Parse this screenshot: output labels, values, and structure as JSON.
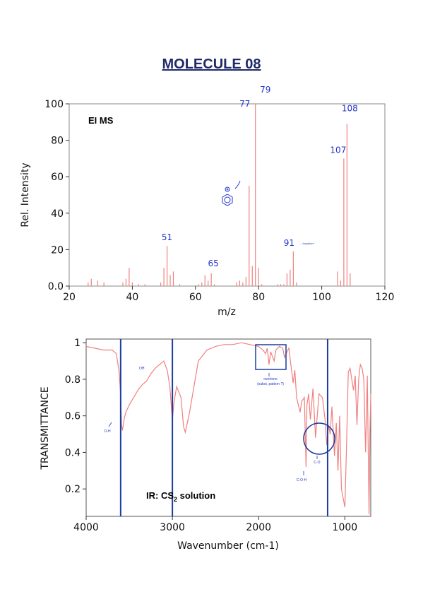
{
  "page_title": "MOLECULE 08",
  "chart_data": [
    {
      "type": "bar",
      "title": "EI MS",
      "xlabel": "m/z",
      "ylabel": "Rel. Intensity",
      "xlim": [
        20,
        120
      ],
      "ylim": [
        0,
        100
      ],
      "xticks": [
        "20",
        "40",
        "60",
        "80",
        "100",
        "120"
      ],
      "yticks": [
        "0.0",
        "20",
        "40",
        "60",
        "80",
        "100"
      ],
      "grid": false,
      "color": "#f08080",
      "peaks": [
        {
          "x": 26,
          "y": 2
        },
        {
          "x": 27,
          "y": 4
        },
        {
          "x": 29,
          "y": 3
        },
        {
          "x": 31,
          "y": 2
        },
        {
          "x": 37,
          "y": 2
        },
        {
          "x": 38,
          "y": 4
        },
        {
          "x": 39,
          "y": 10
        },
        {
          "x": 40,
          "y": 2
        },
        {
          "x": 42,
          "y": 1
        },
        {
          "x": 44,
          "y": 1
        },
        {
          "x": 49,
          "y": 2
        },
        {
          "x": 50,
          "y": 10
        },
        {
          "x": 51,
          "y": 22
        },
        {
          "x": 52,
          "y": 6
        },
        {
          "x": 53,
          "y": 8
        },
        {
          "x": 55,
          "y": 1
        },
        {
          "x": 61,
          "y": 1
        },
        {
          "x": 62,
          "y": 2
        },
        {
          "x": 63,
          "y": 6
        },
        {
          "x": 64,
          "y": 3
        },
        {
          "x": 65,
          "y": 7
        },
        {
          "x": 66,
          "y": 1
        },
        {
          "x": 73,
          "y": 2
        },
        {
          "x": 74,
          "y": 3
        },
        {
          "x": 75,
          "y": 2
        },
        {
          "x": 76,
          "y": 5
        },
        {
          "x": 77,
          "y": 55
        },
        {
          "x": 78,
          "y": 11
        },
        {
          "x": 79,
          "y": 100
        },
        {
          "x": 80,
          "y": 10
        },
        {
          "x": 81,
          "y": 1
        },
        {
          "x": 86,
          "y": 1
        },
        {
          "x": 87,
          "y": 1
        },
        {
          "x": 88,
          "y": 1
        },
        {
          "x": 89,
          "y": 7
        },
        {
          "x": 90,
          "y": 9
        },
        {
          "x": 91,
          "y": 19
        },
        {
          "x": 92,
          "y": 2
        },
        {
          "x": 105,
          "y": 8
        },
        {
          "x": 106,
          "y": 3
        },
        {
          "x": 107,
          "y": 70
        },
        {
          "x": 108,
          "y": 89
        },
        {
          "x": 109,
          "y": 7
        }
      ],
      "annotations": [
        {
          "text": "51",
          "x": 51,
          "y": 22
        },
        {
          "text": "65",
          "x": 65,
          "y": 7
        },
        {
          "text": "77",
          "x": 77,
          "y": 55
        },
        {
          "text": "79",
          "x": 79,
          "y": 100
        },
        {
          "text": "91",
          "x": 91,
          "y": 19,
          "note": "→ tropylium"
        },
        {
          "text": "107",
          "x": 107,
          "y": 70
        },
        {
          "text": "108",
          "x": 108,
          "y": 89
        }
      ]
    },
    {
      "type": "line",
      "title": "IR: CS2 solution",
      "xlabel": "Wavenumber (cm-1)",
      "ylabel": "TRANSMITTANCE",
      "xlim": [
        4000,
        700
      ],
      "ylim": [
        0.05,
        1.02
      ],
      "xticks": [
        "4000",
        "3000",
        "2000",
        "1000"
      ],
      "yticks": [
        "0.2",
        "0.4",
        "0.6",
        "0.8",
        "1"
      ],
      "grid": false,
      "color": "#f08080",
      "x": [
        4000,
        3900,
        3800,
        3700,
        3650,
        3620,
        3600,
        3590,
        3580,
        3560,
        3540,
        3500,
        3450,
        3400,
        3350,
        3300,
        3250,
        3200,
        3150,
        3100,
        3060,
        3030,
        3000,
        2980,
        2950,
        2900,
        2870,
        2850,
        2800,
        2700,
        2600,
        2500,
        2400,
        2300,
        2200,
        2100,
        2000,
        1950,
        1920,
        1900,
        1880,
        1860,
        1820,
        1800,
        1760,
        1720,
        1700,
        1650,
        1600,
        1580,
        1560,
        1520,
        1500,
        1470,
        1450,
        1440,
        1420,
        1400,
        1370,
        1340,
        1300,
        1260,
        1230,
        1210,
        1190,
        1170,
        1150,
        1120,
        1100,
        1080,
        1060,
        1040,
        1020,
        1000,
        980,
        960,
        940,
        900,
        880,
        860,
        840,
        820,
        800,
        780,
        760,
        740,
        720,
        710,
        700
      ],
      "y": [
        0.98,
        0.97,
        0.96,
        0.96,
        0.94,
        0.85,
        0.72,
        0.55,
        0.52,
        0.58,
        0.62,
        0.66,
        0.7,
        0.74,
        0.77,
        0.79,
        0.83,
        0.86,
        0.88,
        0.9,
        0.85,
        0.76,
        0.58,
        0.68,
        0.76,
        0.7,
        0.54,
        0.51,
        0.62,
        0.9,
        0.96,
        0.98,
        0.99,
        0.99,
        1.0,
        0.99,
        0.98,
        0.96,
        0.94,
        0.97,
        0.88,
        0.95,
        0.9,
        0.96,
        0.98,
        0.97,
        0.92,
        0.97,
        0.78,
        0.85,
        0.7,
        0.62,
        0.68,
        0.7,
        0.32,
        0.66,
        0.72,
        0.58,
        0.75,
        0.48,
        0.72,
        0.7,
        0.58,
        0.44,
        0.55,
        0.5,
        0.65,
        0.38,
        0.56,
        0.3,
        0.6,
        0.2,
        0.15,
        0.1,
        0.45,
        0.84,
        0.86,
        0.74,
        0.82,
        0.55,
        0.8,
        0.88,
        0.86,
        0.8,
        0.4,
        0.82,
        0.06,
        0.5,
        0.72
      ]
    }
  ],
  "ir_annotations": {
    "oh_peak": "O-H",
    "oh_side": "OH",
    "overtone_line1": "overtone",
    "overtone_line2": "(subst. pattern ?)",
    "co_label": "C-O",
    "coh_label": "C-O-H"
  },
  "markers": {
    "vertical_lines_cm": [
      3600,
      3000,
      1200
    ],
    "color": "#1a3d9e"
  }
}
